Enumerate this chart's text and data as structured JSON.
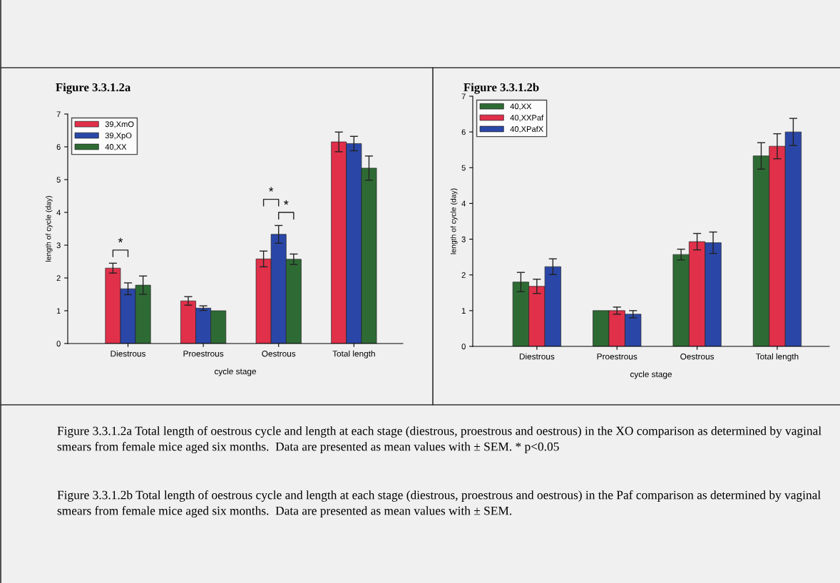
{
  "chart_data": [
    {
      "type": "bar",
      "title": "Figure 3.3.1.2a",
      "xlabel": "cycle stage",
      "ylabel": "length of cycle (day)",
      "categories": [
        "Diestrous",
        "Proestrous",
        "Oestrous",
        "Total length"
      ],
      "series": [
        {
          "name": "39,XmO",
          "color": "#e0304a",
          "values": [
            2.3,
            1.3,
            2.58,
            6.15
          ],
          "errors": [
            0.15,
            0.13,
            0.24,
            0.3
          ]
        },
        {
          "name": "39,XpO",
          "color": "#2a47a8",
          "values": [
            1.67,
            1.08,
            3.33,
            6.1
          ],
          "errors": [
            0.18,
            0.07,
            0.27,
            0.22
          ]
        },
        {
          "name": "40,XX",
          "color": "#2e6b34",
          "values": [
            1.78,
            1.0,
            2.57,
            5.35
          ],
          "errors": [
            0.28,
            null,
            0.16,
            0.37
          ]
        }
      ],
      "ylim": [
        0,
        7
      ],
      "yticks": [
        0,
        1,
        2,
        3,
        4,
        5,
        6,
        7
      ],
      "grid": false,
      "legend": "top left",
      "annotations": [
        "*",
        "*",
        "*",
        "Figure 3.3.1.2a Total length of oestrous cycle and length at each stage (diestrous, proestrous and oestrous) in the XO comparison as determined by vaginal smears from female mice aged six months.  Data are presented as mean values with ± SEM. * p<0.05"
      ]
    },
    {
      "type": "bar",
      "title": "Figure 3.3.1.2b",
      "xlabel": "cycle stage",
      "ylabel": "length of cycle (day)",
      "categories": [
        "Diestrous",
        "Proestrous",
        "Oestrous",
        "Total length"
      ],
      "series": [
        {
          "name": "40,XX",
          "color": "#2e6b34",
          "values": [
            1.8,
            1.0,
            2.57,
            5.33
          ],
          "errors": [
            0.27,
            null,
            0.15,
            0.37
          ]
        },
        {
          "name": "40,XXPaf",
          "color": "#e0304a",
          "values": [
            1.68,
            1.0,
            2.93,
            5.6
          ],
          "errors": [
            0.2,
            0.1,
            0.23,
            0.35
          ]
        },
        {
          "name": "40,XPafX",
          "color": "#2a47a8",
          "values": [
            2.23,
            0.9,
            2.9,
            6.0
          ],
          "errors": [
            0.22,
            0.1,
            0.3,
            0.38
          ]
        }
      ],
      "ylim": [
        0,
        7
      ],
      "yticks": [
        0,
        1,
        2,
        3,
        4,
        5,
        6,
        7
      ],
      "grid": false,
      "legend": "top left",
      "annotations": [
        "Figure 3.3.1.2b Total length of oestrous cycle and length at each stage (diestrous, proestrous and oestrous) in the Paf comparison as determined by vaginal smears from female mice aged six months.  Data are presented as mean values with ± SEM."
      ]
    }
  ]
}
